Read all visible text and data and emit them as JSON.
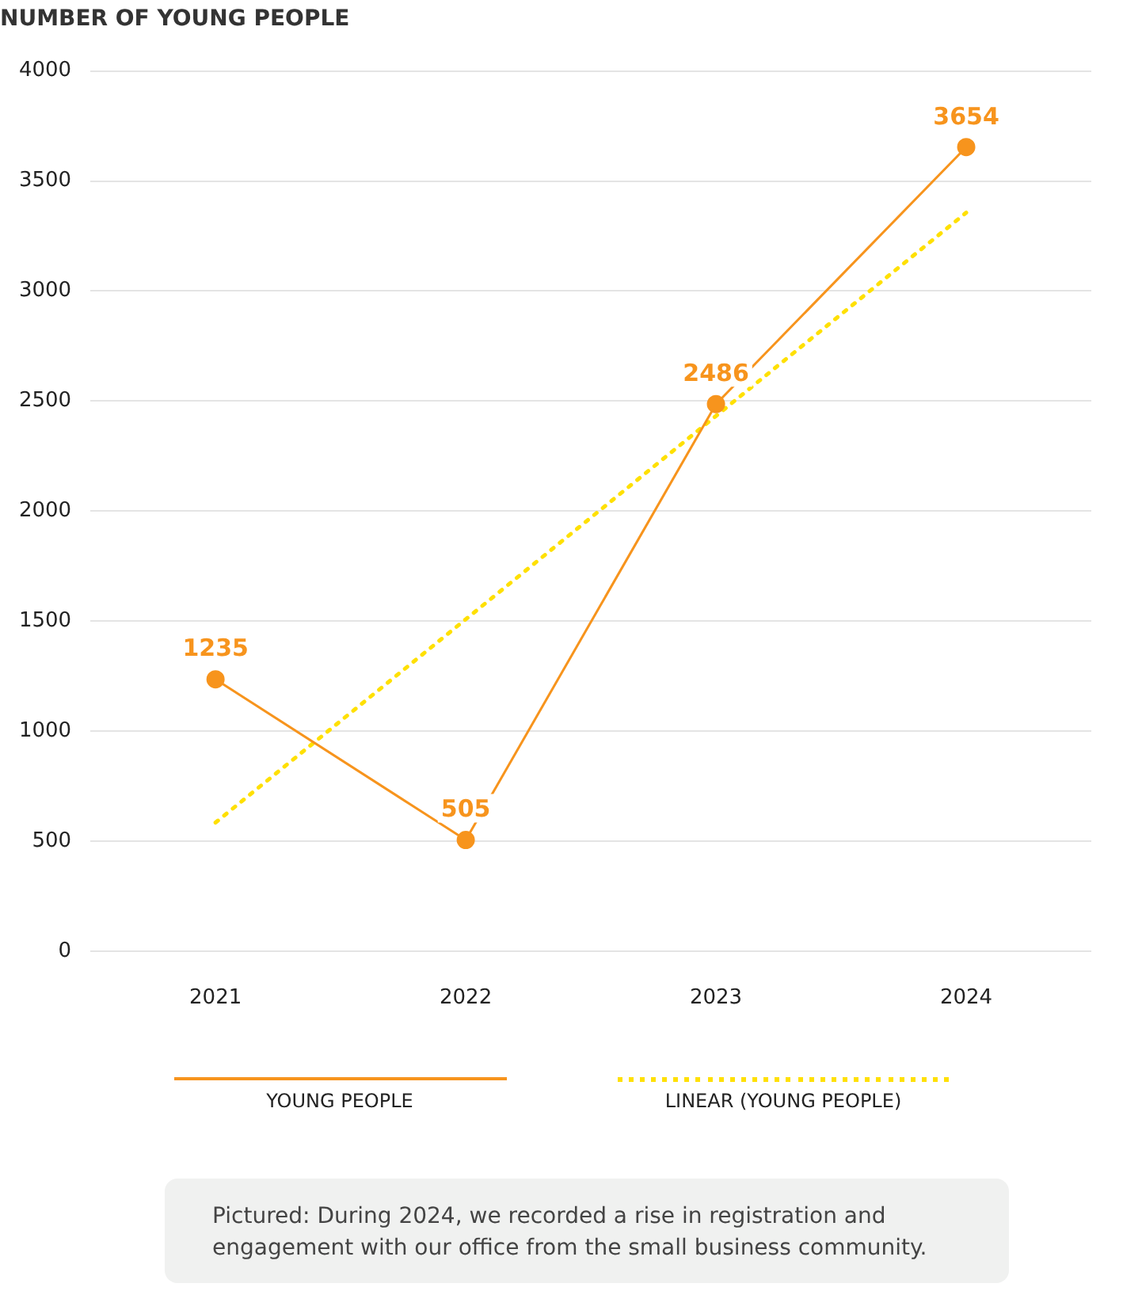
{
  "chart_data": {
    "type": "line",
    "title": "NUMBER OF YOUNG PEOPLE",
    "categories": [
      "2021",
      "2022",
      "2023",
      "2024"
    ],
    "series": [
      {
        "name": "YOUNG PEOPLE",
        "color": "#f7941d",
        "values": [
          1235,
          505,
          2486,
          3654
        ],
        "value_labels": [
          "1235",
          "505",
          "2486",
          "3654"
        ],
        "marker": "circle",
        "line_style": "solid"
      },
      {
        "name": "LINEAR (YOUNG PEOPLE)",
        "color": "#ffe000",
        "values": [
          584,
          1508,
          2432,
          3356
        ],
        "marker": "none",
        "line_style": "dotted"
      }
    ],
    "ylim": [
      0,
      4000
    ],
    "yticks": [
      0,
      500,
      1000,
      1500,
      2000,
      2500,
      3000,
      3500,
      4000
    ],
    "grid": "y",
    "legend": "bottom",
    "annotations": [
      "Pictured: During 2024, we recorded a rise in registration and engagement with our office from the small business community."
    ]
  }
}
